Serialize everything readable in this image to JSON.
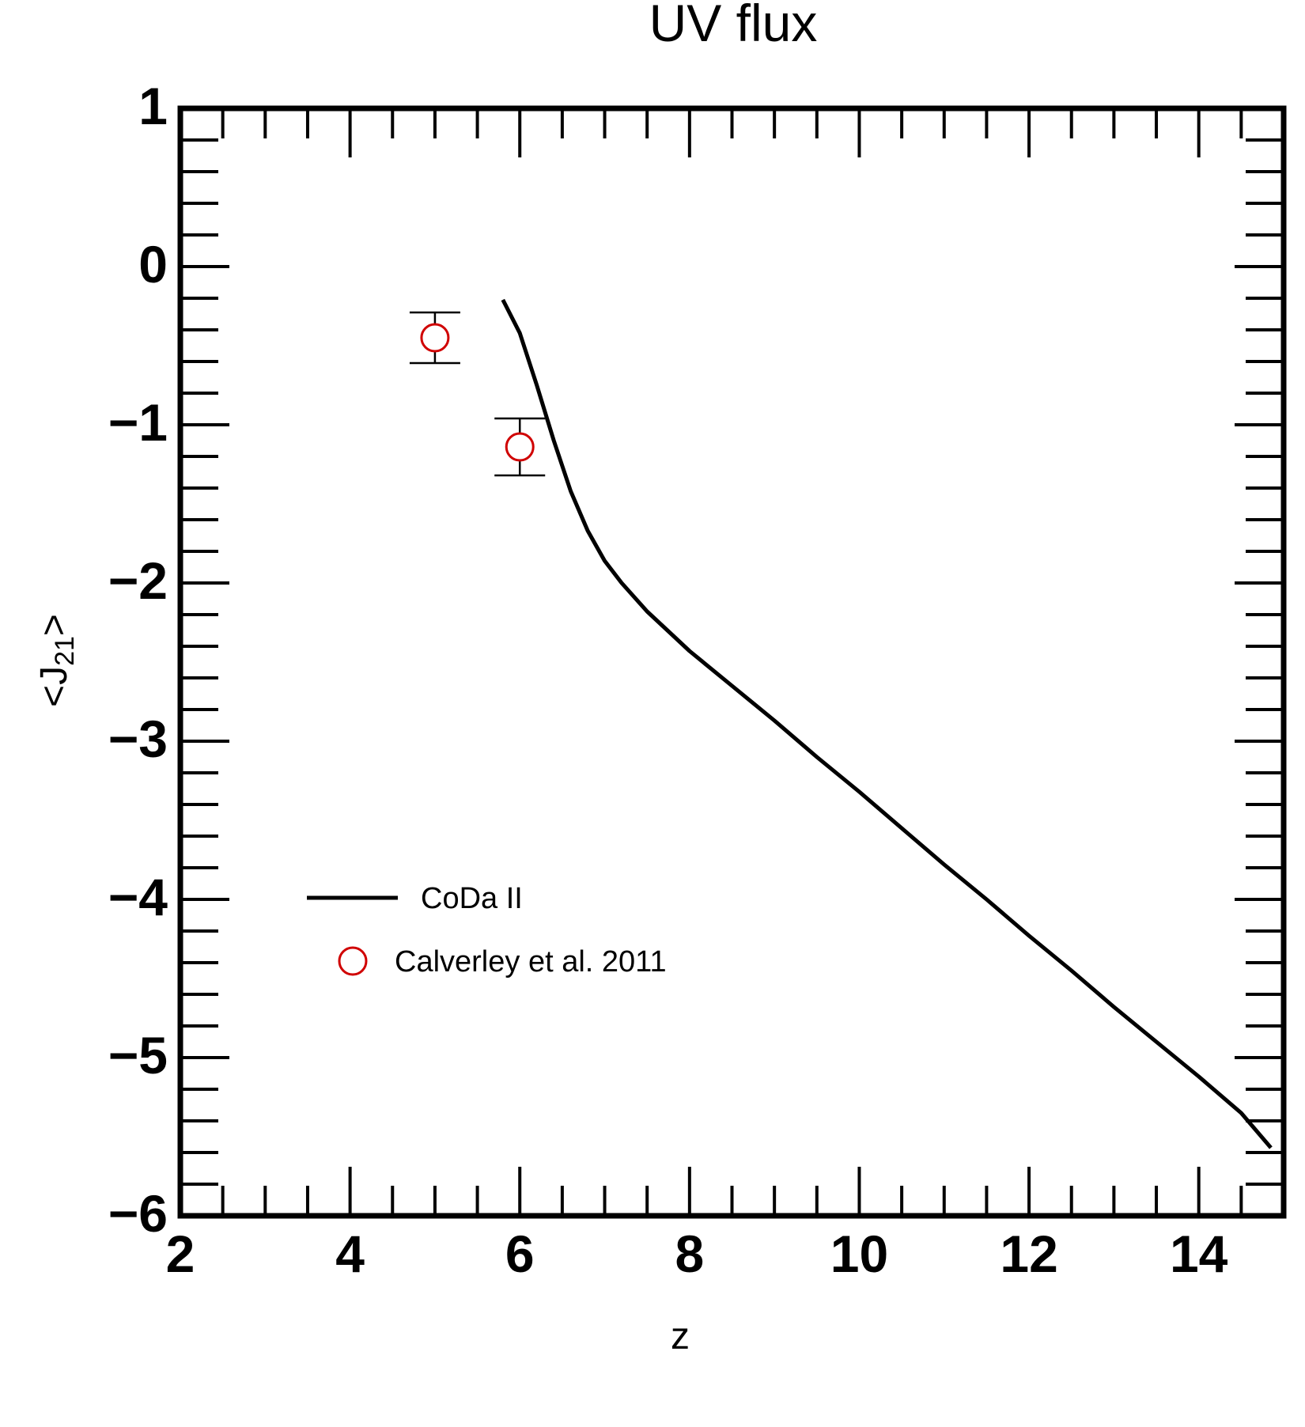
{
  "chart_data": {
    "type": "line",
    "title": "UV flux",
    "xlabel": "z",
    "ylabel": "<J21>",
    "ylabel_parts": {
      "main": "<J",
      "sub": "21",
      "close": ">"
    },
    "xlim": [
      2,
      15
    ],
    "ylim": [
      -6,
      1
    ],
    "x_ticks": [
      2,
      4,
      6,
      8,
      10,
      12,
      14
    ],
    "y_ticks": [
      1,
      0,
      -1,
      -2,
      -3,
      -4,
      -5,
      -6
    ],
    "x_tick_labels": [
      "2",
      "4",
      "6",
      "8",
      "10",
      "12",
      "14"
    ],
    "y_tick_labels": [
      "1",
      "0",
      "−1",
      "−2",
      "−3",
      "−4",
      "−5",
      "−6"
    ],
    "x_minor_step": 0.5,
    "y_minor_step": 0.2,
    "grid": false,
    "legend_placement": "lower-left",
    "series": [
      {
        "name": "CoDa II",
        "kind": "line",
        "color": "#000000",
        "x": [
          5.8,
          6.0,
          6.2,
          6.4,
          6.6,
          6.8,
          7.0,
          7.2,
          7.5,
          7.8,
          8.0,
          8.5,
          9.0,
          9.5,
          10.0,
          10.5,
          11.0,
          11.5,
          12.0,
          12.5,
          13.0,
          13.5,
          14.0,
          14.5,
          14.85
        ],
        "y": [
          -0.21,
          -0.42,
          -0.75,
          -1.1,
          -1.42,
          -1.67,
          -1.86,
          -2.0,
          -2.18,
          -2.33,
          -2.43,
          -2.65,
          -2.87,
          -3.1,
          -3.32,
          -3.55,
          -3.78,
          -4.0,
          -4.23,
          -4.45,
          -4.68,
          -4.9,
          -5.12,
          -5.35,
          -5.57
        ]
      },
      {
        "name": "Calverley et al. 2011",
        "kind": "scatter",
        "color": "#d00000",
        "points": [
          {
            "x": 5.0,
            "y": -0.45,
            "err_low": -0.61,
            "err_high": -0.29
          },
          {
            "x": 6.0,
            "y": -1.14,
            "err_low": -1.32,
            "err_high": -0.96
          }
        ]
      }
    ]
  }
}
